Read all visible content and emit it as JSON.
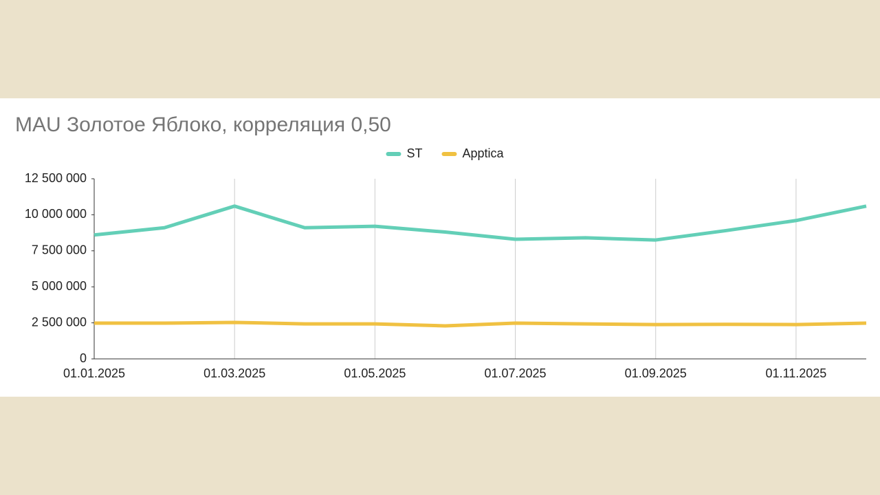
{
  "chart_data": {
    "type": "line",
    "title": "MAU Золотое Яблоко, корреляция 0,50",
    "categories": [
      "01.01.2025",
      null,
      "01.03.2025",
      null,
      "01.05.2025",
      null,
      "01.07.2025",
      null,
      "01.09.2025",
      null,
      "01.11.2025",
      null
    ],
    "series": [
      {
        "name": "ST",
        "color": "#63cfb7",
        "values": [
          8600000,
          9100000,
          10600000,
          9100000,
          9200000,
          8800000,
          8300000,
          8400000,
          8250000,
          8900000,
          9600000,
          10600000
        ]
      },
      {
        "name": "Apptica",
        "color": "#f0c142",
        "values": [
          2480000,
          2480000,
          2530000,
          2430000,
          2430000,
          2290000,
          2480000,
          2430000,
          2380000,
          2400000,
          2380000,
          2480000
        ]
      }
    ],
    "ylim": [
      0,
      12500000
    ],
    "yticks": [
      0,
      {
        "value": 2500000,
        "label": "2 500 000"
      },
      {
        "value": 5000000,
        "label": "5 000 000"
      },
      {
        "value": 7500000,
        "label": "7 500 000"
      },
      {
        "value": 10000000,
        "label": "10 000 000"
      },
      {
        "value": 12500000,
        "label": "12 500 000"
      }
    ],
    "legend": "top"
  }
}
